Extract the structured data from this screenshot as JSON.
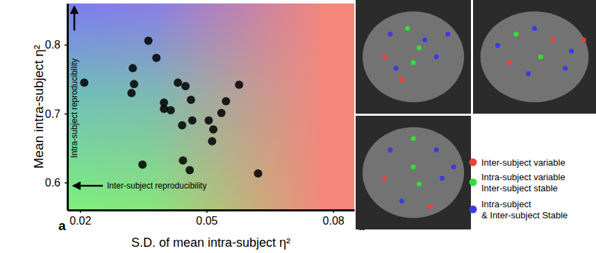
{
  "chart_data": {
    "type": "scatter",
    "panel_label": "a",
    "x_label": "S.D. of mean intra-subject η²",
    "y_label": "Mean intra-subject η²",
    "annotations": [
      "Intra-subject reproducibility",
      "Inter-subject reproducibility"
    ],
    "x": [
      0.021,
      0.0325,
      0.0328,
      0.0322,
      0.0362,
      0.0381,
      0.0399,
      0.0399,
      0.0348,
      0.0415,
      0.0432,
      0.045,
      0.0442,
      0.0444,
      0.046,
      0.0463,
      0.0466,
      0.0505,
      0.0516,
      0.0513,
      0.0535,
      0.0546,
      0.0577,
      0.0622
    ],
    "values": [
      0.745,
      0.766,
      0.743,
      0.73,
      0.806,
      0.781,
      0.716,
      0.707,
      0.626,
      0.705,
      0.745,
      0.74,
      0.683,
      0.632,
      0.618,
      0.72,
      0.69,
      0.69,
      0.677,
      0.66,
      0.701,
      0.718,
      0.742,
      0.613
    ],
    "color": "#000000",
    "xlim": [
      0.017,
      0.085
    ],
    "xticks": [
      0.02,
      0.05,
      0.08
    ],
    "ylim": [
      0.56,
      0.86
    ],
    "yticks": [
      0.6,
      0.7,
      0.8
    ]
  },
  "panel_b": {
    "label": "b",
    "legend": [
      {
        "lines": [
          "Inter-subject variable"
        ],
        "color": "#e8423a"
      },
      {
        "lines": [
          "Intra-subject variable",
          "Inter-subject stable"
        ],
        "color": "#33e033"
      },
      {
        "lines": [
          "Intra-subject",
          "& Inter-subject Stable"
        ],
        "color": "#3a3ae8"
      }
    ]
  }
}
